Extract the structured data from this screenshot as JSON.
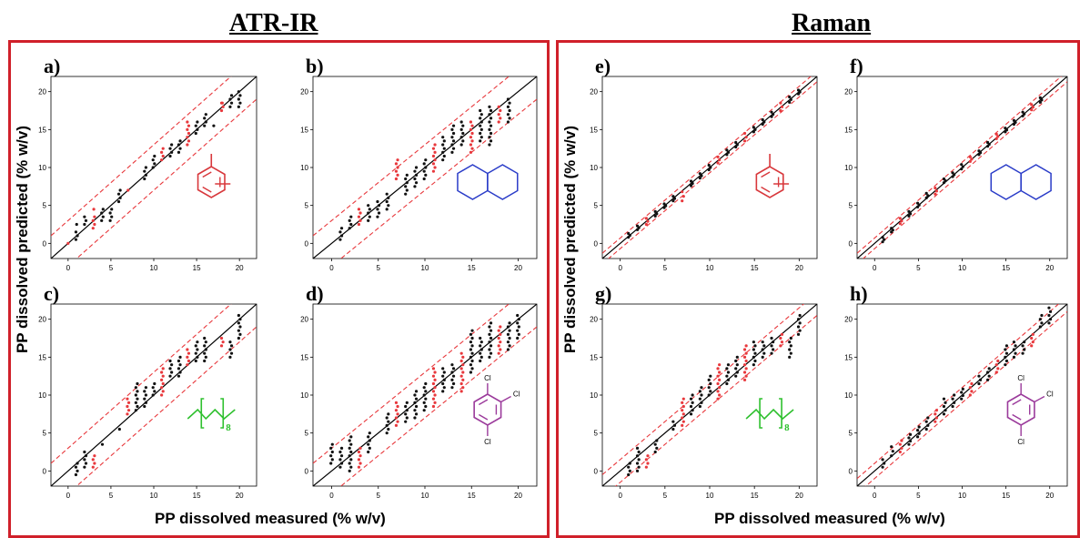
{
  "groups": [
    {
      "title": "ATR-IR",
      "ylabel": "PP dissolved predicted (% w/v)",
      "xlabel": "PP dissolved measured (% w/v)"
    },
    {
      "title": "Raman",
      "ylabel": "PP dissolved predicted (% w/v)",
      "xlabel": "PP dissolved measured (% w/v)"
    }
  ],
  "colors": {
    "frame": "#d0202a",
    "calibration": "#111111",
    "validation": "#e8383c",
    "limits": "#e8383c",
    "toluene": "#d8383c",
    "decalin": "#2a3cc8",
    "alkane": "#2ec02e",
    "trichlorobenzene": "#9b3a9b"
  },
  "panels": [
    {
      "label": "a)",
      "icon": "toluene-structure-icon"
    },
    {
      "label": "b)",
      "icon": "decalin-structure-icon"
    },
    {
      "label": "c)",
      "icon": "alkane-chain-structure-icon",
      "subscript": "8"
    },
    {
      "label": "d)",
      "icon": "trichlorobenzene-structure-icon",
      "atoms": [
        "Cl",
        "Cl",
        "Cl"
      ]
    },
    {
      "label": "e)",
      "icon": "toluene-structure-icon"
    },
    {
      "label": "f)",
      "icon": "decalin-structure-icon"
    },
    {
      "label": "g)",
      "icon": "alkane-chain-structure-icon",
      "subscript": "8"
    },
    {
      "label": "h)",
      "icon": "trichlorobenzene-structure-icon",
      "atoms": [
        "Cl",
        "Cl",
        "Cl"
      ]
    }
  ],
  "chart_data": [
    {
      "type": "scatter",
      "panel": "a)",
      "xlim": [
        -2,
        22
      ],
      "ylim": [
        -2,
        22
      ],
      "xticks": [
        "0",
        "5",
        "10",
        "15",
        "20"
      ],
      "yticks": [
        "0",
        "5",
        "10",
        "15",
        "20"
      ],
      "limit_band": 3,
      "series": [
        {
          "role": "calibration",
          "x": [
            1,
            1,
            1,
            2,
            2,
            4,
            4,
            5,
            5,
            6,
            6,
            9,
            9,
            10,
            10,
            12,
            12,
            13,
            13,
            15,
            15,
            16,
            16,
            17,
            19,
            19,
            20,
            20
          ],
          "y": [
            0.5,
            1.5,
            2.5,
            2.5,
            3.5,
            3.0,
            4.5,
            3.0,
            4.5,
            5.5,
            7.0,
            8.5,
            10.0,
            10.0,
            11.5,
            11.5,
            13.0,
            12.0,
            13.5,
            14.5,
            16.0,
            15.5,
            17.0,
            15.5,
            18.0,
            19.5,
            18.0,
            20.0
          ]
        },
        {
          "role": "validation",
          "x": [
            0,
            3,
            3,
            3,
            7,
            11,
            11,
            14,
            14,
            18,
            18
          ],
          "y": [
            0,
            2.0,
            3.5,
            4.5,
            7.0,
            11.0,
            12.5,
            13.0,
            16.0,
            17.5,
            18.5
          ]
        }
      ]
    },
    {
      "type": "scatter",
      "panel": "b)",
      "xlim": [
        -2,
        22
      ],
      "ylim": [
        -2,
        22
      ],
      "xticks": [
        "0",
        "5",
        "10",
        "15",
        "20"
      ],
      "yticks": [
        "0",
        "5",
        "10",
        "15",
        "20"
      ],
      "limit_band": 3,
      "series": [
        {
          "role": "calibration",
          "x": [
            1,
            1,
            2,
            2,
            4,
            4,
            5,
            5,
            6,
            6,
            8,
            8,
            9,
            9,
            10,
            10,
            12,
            12,
            13,
            13,
            14,
            14,
            16,
            16,
            17,
            17,
            19,
            19
          ],
          "y": [
            0.5,
            2.0,
            2.0,
            3.5,
            3.0,
            5.0,
            3.5,
            5.5,
            4.5,
            6.5,
            6.5,
            9.0,
            7.5,
            10.0,
            8.5,
            11.0,
            11.0,
            14.0,
            12.0,
            15.5,
            13.0,
            16.0,
            13.5,
            17.5,
            13.0,
            18.0,
            16.0,
            19.0
          ]
        },
        {
          "role": "validation",
          "x": [
            3,
            3,
            7,
            7,
            11,
            11,
            15,
            15,
            18,
            18
          ],
          "y": [
            2.5,
            4.5,
            8.5,
            11.0,
            9.5,
            13.0,
            12.0,
            16.0,
            16.0,
            18.0
          ]
        }
      ]
    },
    {
      "type": "scatter",
      "panel": "c)",
      "xlim": [
        -2,
        22
      ],
      "ylim": [
        -2,
        22
      ],
      "xticks": [
        "0",
        "5",
        "10",
        "15",
        "20"
      ],
      "yticks": [
        "0",
        "5",
        "10",
        "15",
        "20"
      ],
      "limit_band": 3,
      "series": [
        {
          "role": "calibration",
          "x": [
            1,
            1,
            2,
            2,
            4,
            6,
            8,
            8,
            9,
            9,
            10,
            10,
            12,
            12,
            13,
            13,
            15,
            15,
            16,
            16,
            19,
            19,
            20,
            20
          ],
          "y": [
            -0.5,
            1.0,
            0.5,
            2.5,
            3.5,
            5.5,
            8.0,
            11.5,
            8.5,
            11.0,
            10.0,
            11.5,
            12.5,
            14.5,
            12.5,
            15.0,
            14.5,
            17.0,
            14.5,
            17.5,
            15.0,
            17.0,
            17.5,
            20.5
          ]
        },
        {
          "role": "validation",
          "x": [
            3,
            3,
            7,
            7,
            11,
            11,
            14,
            14,
            18,
            18
          ],
          "y": [
            0.5,
            2.0,
            7.5,
            9.5,
            10.0,
            13.5,
            14.0,
            16.0,
            16.5,
            17.5
          ]
        }
      ]
    },
    {
      "type": "scatter",
      "panel": "d)",
      "xlim": [
        -2,
        22
      ],
      "ylim": [
        -2,
        22
      ],
      "xticks": [
        "0",
        "5",
        "10",
        "15",
        "20"
      ],
      "yticks": [
        "0",
        "5",
        "10",
        "15",
        "20"
      ],
      "limit_band": 3,
      "series": [
        {
          "role": "calibration",
          "x": [
            0,
            0,
            1,
            1,
            2,
            2,
            4,
            4,
            6,
            6,
            8,
            8,
            9,
            9,
            10,
            10,
            12,
            12,
            13,
            13,
            15,
            15,
            16,
            16,
            17,
            17,
            19,
            19,
            20,
            20
          ],
          "y": [
            1.0,
            3.5,
            0.5,
            3.0,
            0.0,
            4.5,
            2.5,
            5.0,
            5.0,
            7.5,
            6.5,
            9.0,
            7.0,
            10.5,
            8.0,
            11.5,
            10.5,
            13.5,
            11.0,
            14.0,
            13.0,
            18.5,
            14.5,
            17.5,
            15.0,
            19.5,
            16.0,
            19.5,
            17.5,
            20.5
          ]
        },
        {
          "role": "validation",
          "x": [
            3,
            3,
            7,
            7,
            11,
            11,
            14,
            14,
            18,
            18
          ],
          "y": [
            0.5,
            3.0,
            6.0,
            9.0,
            8.5,
            13.5,
            10.5,
            15.5,
            15.5,
            19.0
          ]
        }
      ]
    },
    {
      "type": "scatter",
      "panel": "e)",
      "xlim": [
        -2,
        22
      ],
      "ylim": [
        -2,
        22
      ],
      "xticks": [
        "0",
        "5",
        "10",
        "15",
        "20"
      ],
      "yticks": [
        "0",
        "5",
        "10",
        "15",
        "20"
      ],
      "limit_band": 0.7,
      "series": [
        {
          "role": "calibration",
          "x": [
            1,
            1,
            2,
            2,
            4,
            4,
            5,
            5,
            6,
            6,
            8,
            8,
            9,
            9,
            10,
            10,
            12,
            12,
            13,
            13,
            15,
            15,
            16,
            16,
            17,
            17,
            19,
            19,
            20,
            20
          ],
          "y": [
            0.8,
            1.3,
            1.8,
            2.3,
            3.6,
            4.2,
            4.7,
            5.2,
            5.6,
            6.2,
            7.6,
            8.2,
            8.6,
            9.2,
            9.7,
            10.3,
            11.7,
            12.3,
            12.7,
            13.3,
            14.7,
            15.3,
            15.7,
            16.3,
            16.7,
            17.3,
            18.6,
            19.3,
            19.7,
            20.2
          ]
        },
        {
          "role": "validation",
          "x": [
            3,
            3,
            7,
            7,
            11,
            11,
            14,
            14,
            18,
            18
          ],
          "y": [
            2.5,
            3.3,
            5.6,
            6.8,
            10.6,
            11.4,
            13.5,
            14.5,
            17.5,
            18.5
          ]
        }
      ]
    },
    {
      "type": "scatter",
      "panel": "f)",
      "xlim": [
        -2,
        22
      ],
      "ylim": [
        -2,
        22
      ],
      "xticks": [
        "0",
        "5",
        "10",
        "15",
        "20"
      ],
      "yticks": [
        "0",
        "5",
        "10",
        "15",
        "20"
      ],
      "limit_band": 0.7,
      "series": [
        {
          "role": "calibration",
          "x": [
            1,
            1,
            2,
            2,
            4,
            4,
            5,
            5,
            6,
            6,
            8,
            8,
            9,
            9,
            10,
            10,
            12,
            12,
            13,
            13,
            15,
            15,
            16,
            16,
            17,
            17,
            19,
            19
          ],
          "y": [
            0.2,
            0.8,
            1.5,
            2.0,
            3.6,
            4.2,
            4.8,
            5.3,
            6.0,
            6.6,
            8.0,
            8.5,
            8.8,
            9.3,
            9.8,
            10.4,
            11.7,
            12.2,
            12.8,
            13.3,
            14.7,
            15.2,
            15.7,
            16.2,
            16.8,
            17.3,
            18.6,
            19.2
          ]
        },
        {
          "role": "validation",
          "x": [
            3,
            3,
            7,
            7,
            11,
            11,
            14,
            14,
            18,
            18
          ],
          "y": [
            2.6,
            3.3,
            6.5,
            7.3,
            10.8,
            11.4,
            13.8,
            14.4,
            17.6,
            18.3
          ]
        }
      ]
    },
    {
      "type": "scatter",
      "panel": "g)",
      "xlim": [
        -2,
        22
      ],
      "ylim": [
        -2,
        22
      ],
      "xticks": [
        "0",
        "5",
        "10",
        "15",
        "20"
      ],
      "yticks": [
        "0",
        "5",
        "10",
        "15",
        "20"
      ],
      "limit_band": 1.5,
      "series": [
        {
          "role": "calibration",
          "x": [
            1,
            1,
            2,
            2,
            4,
            4,
            6,
            6,
            8,
            8,
            9,
            9,
            10,
            10,
            12,
            12,
            13,
            13,
            15,
            15,
            16,
            16,
            17,
            17,
            19,
            19,
            20,
            20
          ],
          "y": [
            -0.5,
            1.0,
            0.0,
            3.0,
            2.5,
            4.0,
            5.5,
            6.5,
            7.5,
            10.0,
            8.5,
            11.0,
            10.0,
            12.5,
            11.5,
            14.0,
            12.5,
            15.0,
            14.0,
            17.0,
            15.0,
            17.0,
            15.5,
            17.5,
            15.0,
            17.5,
            18.0,
            20.5
          ]
        },
        {
          "role": "validation",
          "x": [
            3,
            3,
            7,
            7,
            11,
            11,
            14,
            14,
            18,
            18
          ],
          "y": [
            0.5,
            2.0,
            6.0,
            9.5,
            9.5,
            14.0,
            12.0,
            16.5,
            16.5,
            18.0
          ]
        }
      ]
    },
    {
      "type": "scatter",
      "panel": "h)",
      "xlim": [
        -2,
        22
      ],
      "ylim": [
        -2,
        22
      ],
      "xticks": [
        "0",
        "5",
        "10",
        "15",
        "20"
      ],
      "yticks": [
        "0",
        "5",
        "10",
        "15",
        "20"
      ],
      "limit_band": 1.0,
      "series": [
        {
          "role": "calibration",
          "x": [
            1,
            1,
            2,
            2,
            4,
            4,
            5,
            5,
            6,
            6,
            8,
            8,
            9,
            9,
            10,
            10,
            12,
            12,
            13,
            13,
            15,
            15,
            16,
            16,
            17,
            17,
            19,
            19,
            20,
            20
          ],
          "y": [
            0.5,
            1.5,
            2.0,
            3.2,
            3.5,
            4.8,
            4.5,
            5.8,
            5.5,
            7.0,
            7.5,
            9.5,
            8.5,
            10.0,
            9.5,
            10.8,
            11.5,
            12.5,
            12.0,
            13.5,
            14.0,
            16.5,
            15.0,
            17.0,
            15.5,
            17.0,
            19.0,
            20.5,
            19.5,
            21.5
          ]
        },
        {
          "role": "validation",
          "x": [
            3,
            3,
            7,
            7,
            11,
            11,
            14,
            14,
            18,
            18
          ],
          "y": [
            2.5,
            4.0,
            6.5,
            8.0,
            10.0,
            11.5,
            13.0,
            14.5,
            16.5,
            18.0
          ]
        }
      ]
    }
  ]
}
